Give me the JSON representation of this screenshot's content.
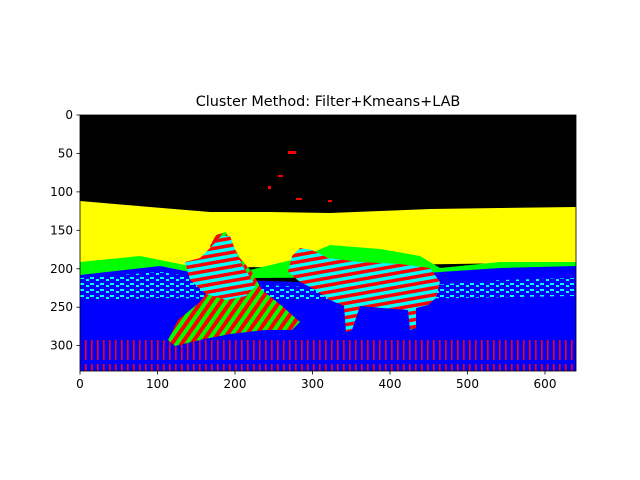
{
  "chart_data": {
    "type": "heatmap",
    "title": "Cluster Method: Filter+Kmeans+LAB",
    "xlabel": "",
    "ylabel": "",
    "xlim": [
      0,
      640
    ],
    "ylim": [
      333,
      0
    ],
    "image_width": 640,
    "image_height": 333,
    "grid": false,
    "x_ticks": [
      0,
      100,
      200,
      300,
      400,
      500,
      600
    ],
    "y_ticks": [
      0,
      50,
      100,
      150,
      200,
      250,
      300
    ],
    "x_tick_labels": [
      "0",
      "100",
      "200",
      "300",
      "400",
      "500",
      "600"
    ],
    "y_tick_labels": [
      "0",
      "50",
      "100",
      "150",
      "200",
      "250",
      "300"
    ],
    "cluster_colors": {
      "sky": "#000000",
      "background": "#ffff00",
      "grass_edge": "#00ff00",
      "ground": "#0000ff",
      "shadow": "#00ffff",
      "stripes": "#ff0000"
    }
  }
}
